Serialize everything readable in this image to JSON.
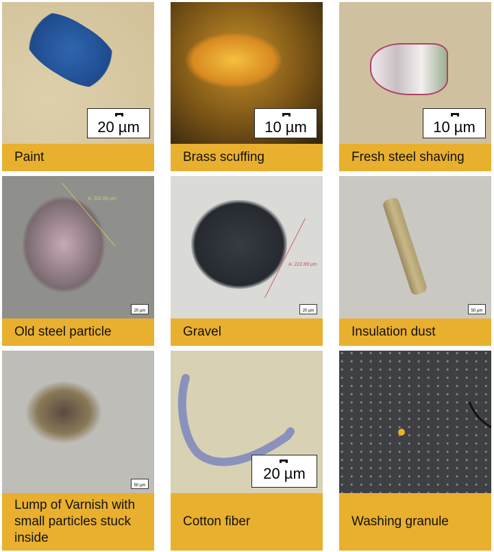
{
  "tiles": [
    {
      "caption": "Paint",
      "scale": "20 µm",
      "background": "#d8c79f",
      "particle_color": "#2a5aa0"
    },
    {
      "caption": "Brass scuffing",
      "scale": "10 µm",
      "background": "#6b4a14",
      "particle_color": "#e0a030"
    },
    {
      "caption": "Fresh steel shaving",
      "scale": "10 µm",
      "background": "#cdbf9e",
      "particle_color": "#e8e0e0"
    },
    {
      "caption": "Old steel particle",
      "scale": "20 µm",
      "measurement": "A: 202.89 µm",
      "background": "#8e8f8a",
      "particle_color": "#b8a0a8"
    },
    {
      "caption": "Gravel",
      "scale": "20 µm",
      "measurement": "A: 222.89 µm",
      "background": "#d9d9d6",
      "particle_color": "#2d3138"
    },
    {
      "caption": "Insulation dust",
      "scale": "50 µm",
      "background": "#c9c7c2",
      "particle_color": "#a89a70"
    },
    {
      "caption": "Lump of Varnish with small particles stuck inside",
      "scale": "50 µm",
      "background": "#bdbcb7",
      "particle_color": "#6a5a48"
    },
    {
      "caption": "Cotton fiber",
      "scale": "20 µm",
      "background": "#d7d0b2",
      "particle_color": "#8890b8"
    },
    {
      "caption": "Washing granule",
      "background": "#3f4044",
      "particle_color": "#e8b020"
    }
  ],
  "colors": {
    "caption_bg": "#e9b02f"
  }
}
